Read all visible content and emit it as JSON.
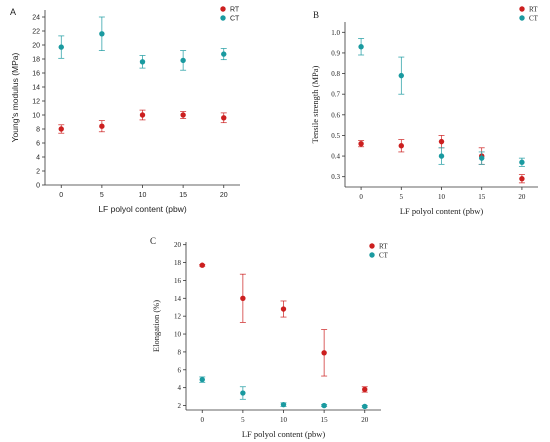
{
  "colors": {
    "RT": "#cc1f1f",
    "CT": "#1a9aa0",
    "axis": "#333333"
  },
  "chart_data": [
    {
      "panel_label": "A",
      "type": "scatter",
      "font": "sans",
      "xlabel": "LF polyol content (pbw)",
      "ylabel": "Young's modulus (MPa)",
      "xlim": [
        -2,
        22
      ],
      "ylim": [
        0,
        25
      ],
      "xticks": [
        0,
        5,
        10,
        15,
        20
      ],
      "yticks": [
        0,
        2,
        4,
        6,
        8,
        10,
        12,
        14,
        16,
        18,
        20,
        22,
        24
      ],
      "ytick_labels": [
        "0",
        "2",
        "4",
        "6",
        "8",
        "10",
        "12",
        "14",
        "16",
        "18",
        "20",
        "22",
        "24"
      ],
      "legend_position": "top-right",
      "series": [
        {
          "name": "RT",
          "color": "RT",
          "x": [
            0,
            5,
            10,
            15,
            20
          ],
          "y": [
            8.0,
            8.4,
            10.0,
            10.0,
            9.6
          ],
          "err": [
            0.6,
            0.8,
            0.7,
            0.5,
            0.7
          ]
        },
        {
          "name": "CT",
          "color": "CT",
          "x": [
            0,
            5,
            10,
            15,
            20
          ],
          "y": [
            19.7,
            21.6,
            17.6,
            17.8,
            18.7
          ],
          "err": [
            1.6,
            2.4,
            0.9,
            1.4,
            0.8
          ]
        }
      ]
    },
    {
      "panel_label": "B",
      "type": "scatter",
      "font": "serif",
      "xlabel": "LF polyol content (pbw)",
      "ylabel": "Tensile strength (MPa)",
      "xlim": [
        -2,
        22
      ],
      "ylim": [
        0.25,
        1.05
      ],
      "xticks": [
        0,
        5,
        10,
        15,
        20
      ],
      "yticks": [
        0.3,
        0.4,
        0.5,
        0.6,
        0.7,
        0.8,
        0.9,
        1.0
      ],
      "ytick_labels": [
        "0.3",
        "0.4",
        "0.5",
        "0.6",
        "0.7",
        "0.8",
        "0.9",
        "1.0"
      ],
      "legend_position": "top-right",
      "series": [
        {
          "name": "RT",
          "color": "RT",
          "x": [
            0,
            5,
            10,
            15,
            20
          ],
          "y": [
            0.46,
            0.45,
            0.47,
            0.4,
            0.29
          ],
          "err": [
            0.015,
            0.03,
            0.03,
            0.04,
            0.02
          ]
        },
        {
          "name": "CT",
          "color": "CT",
          "x": [
            0,
            5,
            10,
            15,
            20
          ],
          "y": [
            0.93,
            0.79,
            0.4,
            0.39,
            0.37
          ],
          "err": [
            0.04,
            0.09,
            0.04,
            0.03,
            0.02
          ]
        }
      ]
    },
    {
      "panel_label": "C",
      "type": "scatter",
      "font": "serif",
      "xlabel": "LF polyol content (pbw)",
      "ylabel": "Elongation (%)",
      "xlim": [
        -2,
        22
      ],
      "ylim": [
        1.5,
        20.3
      ],
      "xticks": [
        0,
        5,
        10,
        15,
        20
      ],
      "yticks": [
        2,
        4,
        6,
        8,
        10,
        12,
        14,
        16,
        18,
        20
      ],
      "ytick_labels": [
        "2",
        "4",
        "6",
        "8",
        "10",
        "12",
        "14",
        "16",
        "18",
        "20"
      ],
      "legend_position": "top-right",
      "series": [
        {
          "name": "RT",
          "color": "RT",
          "x": [
            0,
            5,
            10,
            15,
            20
          ],
          "y": [
            17.7,
            14.0,
            12.8,
            7.9,
            3.8
          ],
          "err": [
            0.1,
            2.7,
            0.9,
            2.6,
            0.3
          ]
        },
        {
          "name": "CT",
          "color": "CT",
          "x": [
            0,
            5,
            10,
            15,
            20
          ],
          "y": [
            4.9,
            3.4,
            2.1,
            2.0,
            1.9
          ],
          "err": [
            0.3,
            0.7,
            0.2,
            0.1,
            0.1
          ]
        }
      ]
    }
  ]
}
